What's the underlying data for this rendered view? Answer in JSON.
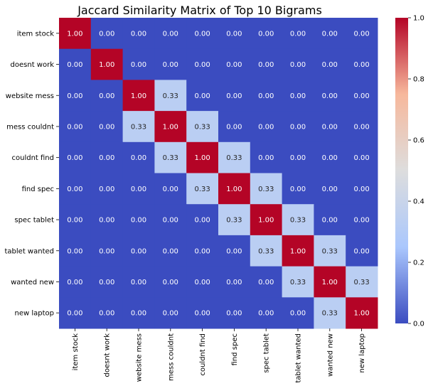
{
  "chart_data": {
    "type": "heatmap",
    "title": "Jaccard Similarity Matrix of Top 10 Bigrams",
    "row_labels": [
      "item stock",
      "doesnt work",
      "website mess",
      "mess couldnt",
      "couldnt find",
      "find spec",
      "spec tablet",
      "tablet wanted",
      "wanted new",
      "new laptop"
    ],
    "col_labels": [
      "item stock",
      "doesnt work",
      "website mess",
      "mess couldnt",
      "couldnt find",
      "find spec",
      "spec tablet",
      "tablet wanted",
      "wanted new",
      "new laptop"
    ],
    "values": [
      [
        1.0,
        0.0,
        0.0,
        0.0,
        0.0,
        0.0,
        0.0,
        0.0,
        0.0,
        0.0
      ],
      [
        0.0,
        1.0,
        0.0,
        0.0,
        0.0,
        0.0,
        0.0,
        0.0,
        0.0,
        0.0
      ],
      [
        0.0,
        0.0,
        1.0,
        0.33,
        0.0,
        0.0,
        0.0,
        0.0,
        0.0,
        0.0
      ],
      [
        0.0,
        0.0,
        0.33,
        1.0,
        0.33,
        0.0,
        0.0,
        0.0,
        0.0,
        0.0
      ],
      [
        0.0,
        0.0,
        0.0,
        0.33,
        1.0,
        0.33,
        0.0,
        0.0,
        0.0,
        0.0
      ],
      [
        0.0,
        0.0,
        0.0,
        0.0,
        0.33,
        1.0,
        0.33,
        0.0,
        0.0,
        0.0
      ],
      [
        0.0,
        0.0,
        0.0,
        0.0,
        0.0,
        0.33,
        1.0,
        0.33,
        0.0,
        0.0
      ],
      [
        0.0,
        0.0,
        0.0,
        0.0,
        0.0,
        0.0,
        0.33,
        1.0,
        0.33,
        0.0
      ],
      [
        0.0,
        0.0,
        0.0,
        0.0,
        0.0,
        0.0,
        0.0,
        0.33,
        1.0,
        0.33
      ],
      [
        0.0,
        0.0,
        0.0,
        0.0,
        0.0,
        0.0,
        0.0,
        0.0,
        0.33,
        1.0
      ]
    ],
    "value_format": "0.00",
    "colormap": "coolwarm",
    "colormap_stops": [
      "#3b4cc0",
      "#aac7fd",
      "#dddddd",
      "#f7b89c",
      "#b40426"
    ],
    "vmin": 0.0,
    "vmax": 1.0,
    "colorbar_ticks": [
      0.0,
      0.2,
      0.4,
      0.6,
      0.8,
      1.0
    ],
    "colorbar_tick_labels": [
      "0.0",
      "0.2",
      "0.4",
      "0.6",
      "0.8",
      "1.0"
    ],
    "xlabel": "",
    "ylabel": "",
    "grid": false,
    "legend": "colorbar-right"
  }
}
